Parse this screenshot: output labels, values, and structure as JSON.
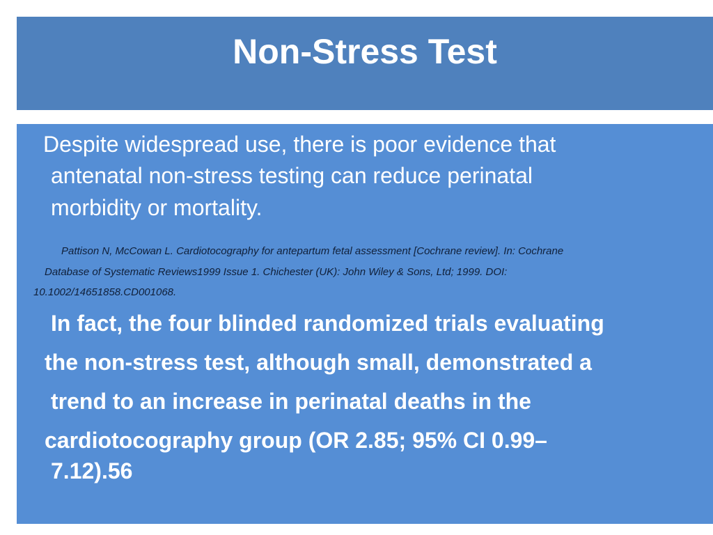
{
  "slide": {
    "title": "Non-Stress Test",
    "paragraph1": [
      "Despite widespread use, there is poor evidence that",
      "antenatal non-stress testing can reduce perinatal",
      "morbidity or mortality."
    ],
    "citation": [
      "Pattison N, McCowan L. Cardiotocography for antepartum fetal assessment [Cochrane review]. In: Cochrane",
      "Database of Systematic Reviews1999 Issue 1. Chichester (UK): John Wiley & Sons, Ltd; 1999. DOI:",
      "10.1002/14651858.CD001068."
    ],
    "paragraph2": [
      "In fact, the four blinded randomized trials evaluating",
      "the non-stress test, although small, demonstrated a",
      "trend to an increase in perinatal deaths in the",
      "cardiotocography group (OR 2.85; 95% CI 0.99–",
      "7.12).56"
    ],
    "colors": {
      "title_background": "#4f81bd",
      "content_background": "#558ed5",
      "text": "#ffffff",
      "citation_text": "#10203a"
    }
  }
}
